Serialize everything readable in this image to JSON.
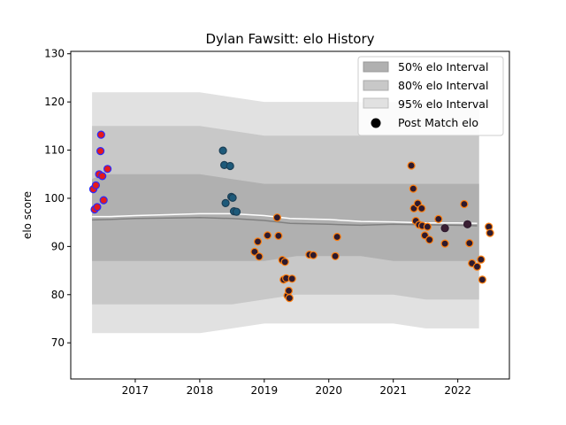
{
  "chart_data": {
    "type": "scatter",
    "title": "Dylan Fawsitt: elo History",
    "xlabel": "",
    "ylabel": "elo score",
    "xlim": [
      2016.0,
      2022.8
    ],
    "ylim": [
      62.5,
      130.5
    ],
    "xticks": [
      2017,
      2018,
      2019,
      2020,
      2021,
      2022
    ],
    "xtick_labels": [
      "2017",
      "2018",
      "2019",
      "2020",
      "2021",
      "2022"
    ],
    "yticks": [
      70,
      80,
      90,
      100,
      110,
      120,
      130
    ],
    "ytick_labels": [
      "70",
      "80",
      "90",
      "100",
      "110",
      "120",
      "130"
    ],
    "grid": false,
    "legend_position": "top-right",
    "legend": [
      {
        "label": "50% elo Interval",
        "color": "#b0b0b0",
        "kind": "patch"
      },
      {
        "label": "80% elo Interval",
        "color": "#c8c8c8",
        "kind": "patch"
      },
      {
        "label": "95% elo Interval",
        "color": "#e1e1e1",
        "kind": "patch"
      },
      {
        "label": "Post Match elo",
        "color": "#000000",
        "kind": "marker"
      }
    ],
    "bands": {
      "x": [
        2016.33,
        2016.5,
        2017.0,
        2017.5,
        2018.0,
        2018.5,
        2019.0,
        2019.5,
        2020.0,
        2020.5,
        2021.0,
        2021.5,
        2022.0,
        2022.33
      ],
      "p95_upper": [
        122,
        122,
        122,
        122,
        122,
        121,
        120,
        120,
        120,
        120,
        120,
        120,
        120,
        120
      ],
      "p95_lower": [
        72,
        72,
        72,
        72,
        72,
        73,
        74,
        74,
        74,
        74,
        74,
        73,
        73,
        73
      ],
      "p80_upper": [
        115,
        115,
        115,
        115,
        115,
        114,
        113,
        113,
        113,
        113,
        113,
        113,
        113,
        113
      ],
      "p80_lower": [
        78,
        78,
        78,
        78,
        78,
        78,
        79,
        80,
        80,
        80,
        80,
        79,
        79,
        79
      ],
      "p50_upper": [
        104,
        105,
        105,
        105,
        105,
        104,
        103,
        103,
        103,
        103,
        103,
        103,
        103,
        103
      ],
      "p50_lower": [
        87,
        87,
        87,
        87,
        87,
        87,
        87,
        88,
        88,
        88,
        87,
        87,
        87,
        87
      ]
    },
    "mean_line": {
      "color": "#ffffff",
      "x": [
        2016.33,
        2016.6,
        2017.0,
        2017.5,
        2018.0,
        2018.5,
        2019.0,
        2019.4,
        2019.7,
        2020.0,
        2020.5,
        2021.0,
        2021.5,
        2022.0,
        2022.3
      ],
      "y": [
        96.2,
        96.2,
        96.4,
        96.6,
        96.8,
        96.8,
        96.4,
        95.8,
        95.7,
        95.6,
        95.2,
        95.1,
        94.9,
        94.9,
        94.8
      ]
    },
    "median_line": {
      "color": "#808080",
      "x": [
        2016.33,
        2016.6,
        2017.0,
        2017.5,
        2018.0,
        2018.5,
        2019.0,
        2019.4,
        2019.7,
        2020.0,
        2020.5,
        2021.0,
        2021.5,
        2022.0,
        2022.3
      ],
      "y": [
        95.5,
        95.6,
        95.8,
        95.9,
        96.0,
        95.8,
        95.4,
        94.8,
        94.7,
        94.6,
        94.4,
        94.6,
        94.5,
        94.4,
        94.3
      ]
    },
    "series": [
      {
        "fill": "#e41a1c",
        "edge": "#2a2aff",
        "points": [
          [
            2016.35,
            101.9
          ],
          [
            2016.37,
            97.7
          ],
          [
            2016.39,
            102.7
          ],
          [
            2016.41,
            98.2
          ],
          [
            2016.44,
            105.0
          ],
          [
            2016.46,
            109.8
          ],
          [
            2016.47,
            113.2
          ],
          [
            2016.49,
            104.6
          ],
          [
            2016.51,
            99.6
          ],
          [
            2016.57,
            106.1
          ]
        ]
      },
      {
        "fill": "#1e5a7a",
        "edge": "#1b3f56",
        "points": [
          [
            2018.36,
            109.9
          ],
          [
            2018.38,
            106.9
          ],
          [
            2018.4,
            99.0
          ],
          [
            2018.47,
            106.7
          ],
          [
            2018.49,
            100.3
          ],
          [
            2018.51,
            100.1
          ],
          [
            2018.53,
            97.3
          ],
          [
            2018.57,
            97.2
          ]
        ]
      },
      {
        "fill": "#2e1a2e",
        "edge": "#ff7f0e",
        "points": [
          [
            2018.85,
            88.9
          ],
          [
            2018.9,
            91.0
          ],
          [
            2018.92,
            87.9
          ],
          [
            2019.05,
            92.3
          ],
          [
            2019.2,
            96.0
          ],
          [
            2019.22,
            92.2
          ],
          [
            2019.28,
            87.2
          ],
          [
            2019.3,
            83.1
          ],
          [
            2019.32,
            86.8
          ],
          [
            2019.34,
            83.4
          ],
          [
            2019.36,
            79.8
          ],
          [
            2019.38,
            80.8
          ],
          [
            2019.39,
            79.3
          ],
          [
            2019.43,
            83.3
          ],
          [
            2019.7,
            88.3
          ],
          [
            2019.76,
            88.2
          ],
          [
            2020.1,
            88.0
          ],
          [
            2020.13,
            92.0
          ],
          [
            2021.28,
            106.8
          ],
          [
            2021.31,
            102.0
          ],
          [
            2021.32,
            97.9
          ],
          [
            2021.35,
            95.3
          ],
          [
            2021.38,
            98.9
          ],
          [
            2021.4,
            94.5
          ],
          [
            2021.44,
            97.9
          ],
          [
            2021.45,
            94.3
          ],
          [
            2021.49,
            92.3
          ],
          [
            2021.53,
            94.1
          ],
          [
            2021.56,
            91.4
          ],
          [
            2021.7,
            95.7
          ],
          [
            2021.8,
            90.6
          ],
          [
            2022.1,
            98.8
          ],
          [
            2022.18,
            90.7
          ],
          [
            2022.22,
            86.5
          ],
          [
            2022.3,
            85.8
          ],
          [
            2022.36,
            87.3
          ],
          [
            2022.38,
            83.1
          ],
          [
            2022.48,
            94.1
          ],
          [
            2022.5,
            92.8
          ]
        ]
      },
      {
        "fill": "#3a1f33",
        "edge": "#2e1a2e",
        "points": [
          [
            2021.8,
            93.8
          ],
          [
            2022.15,
            94.6
          ]
        ]
      }
    ]
  }
}
